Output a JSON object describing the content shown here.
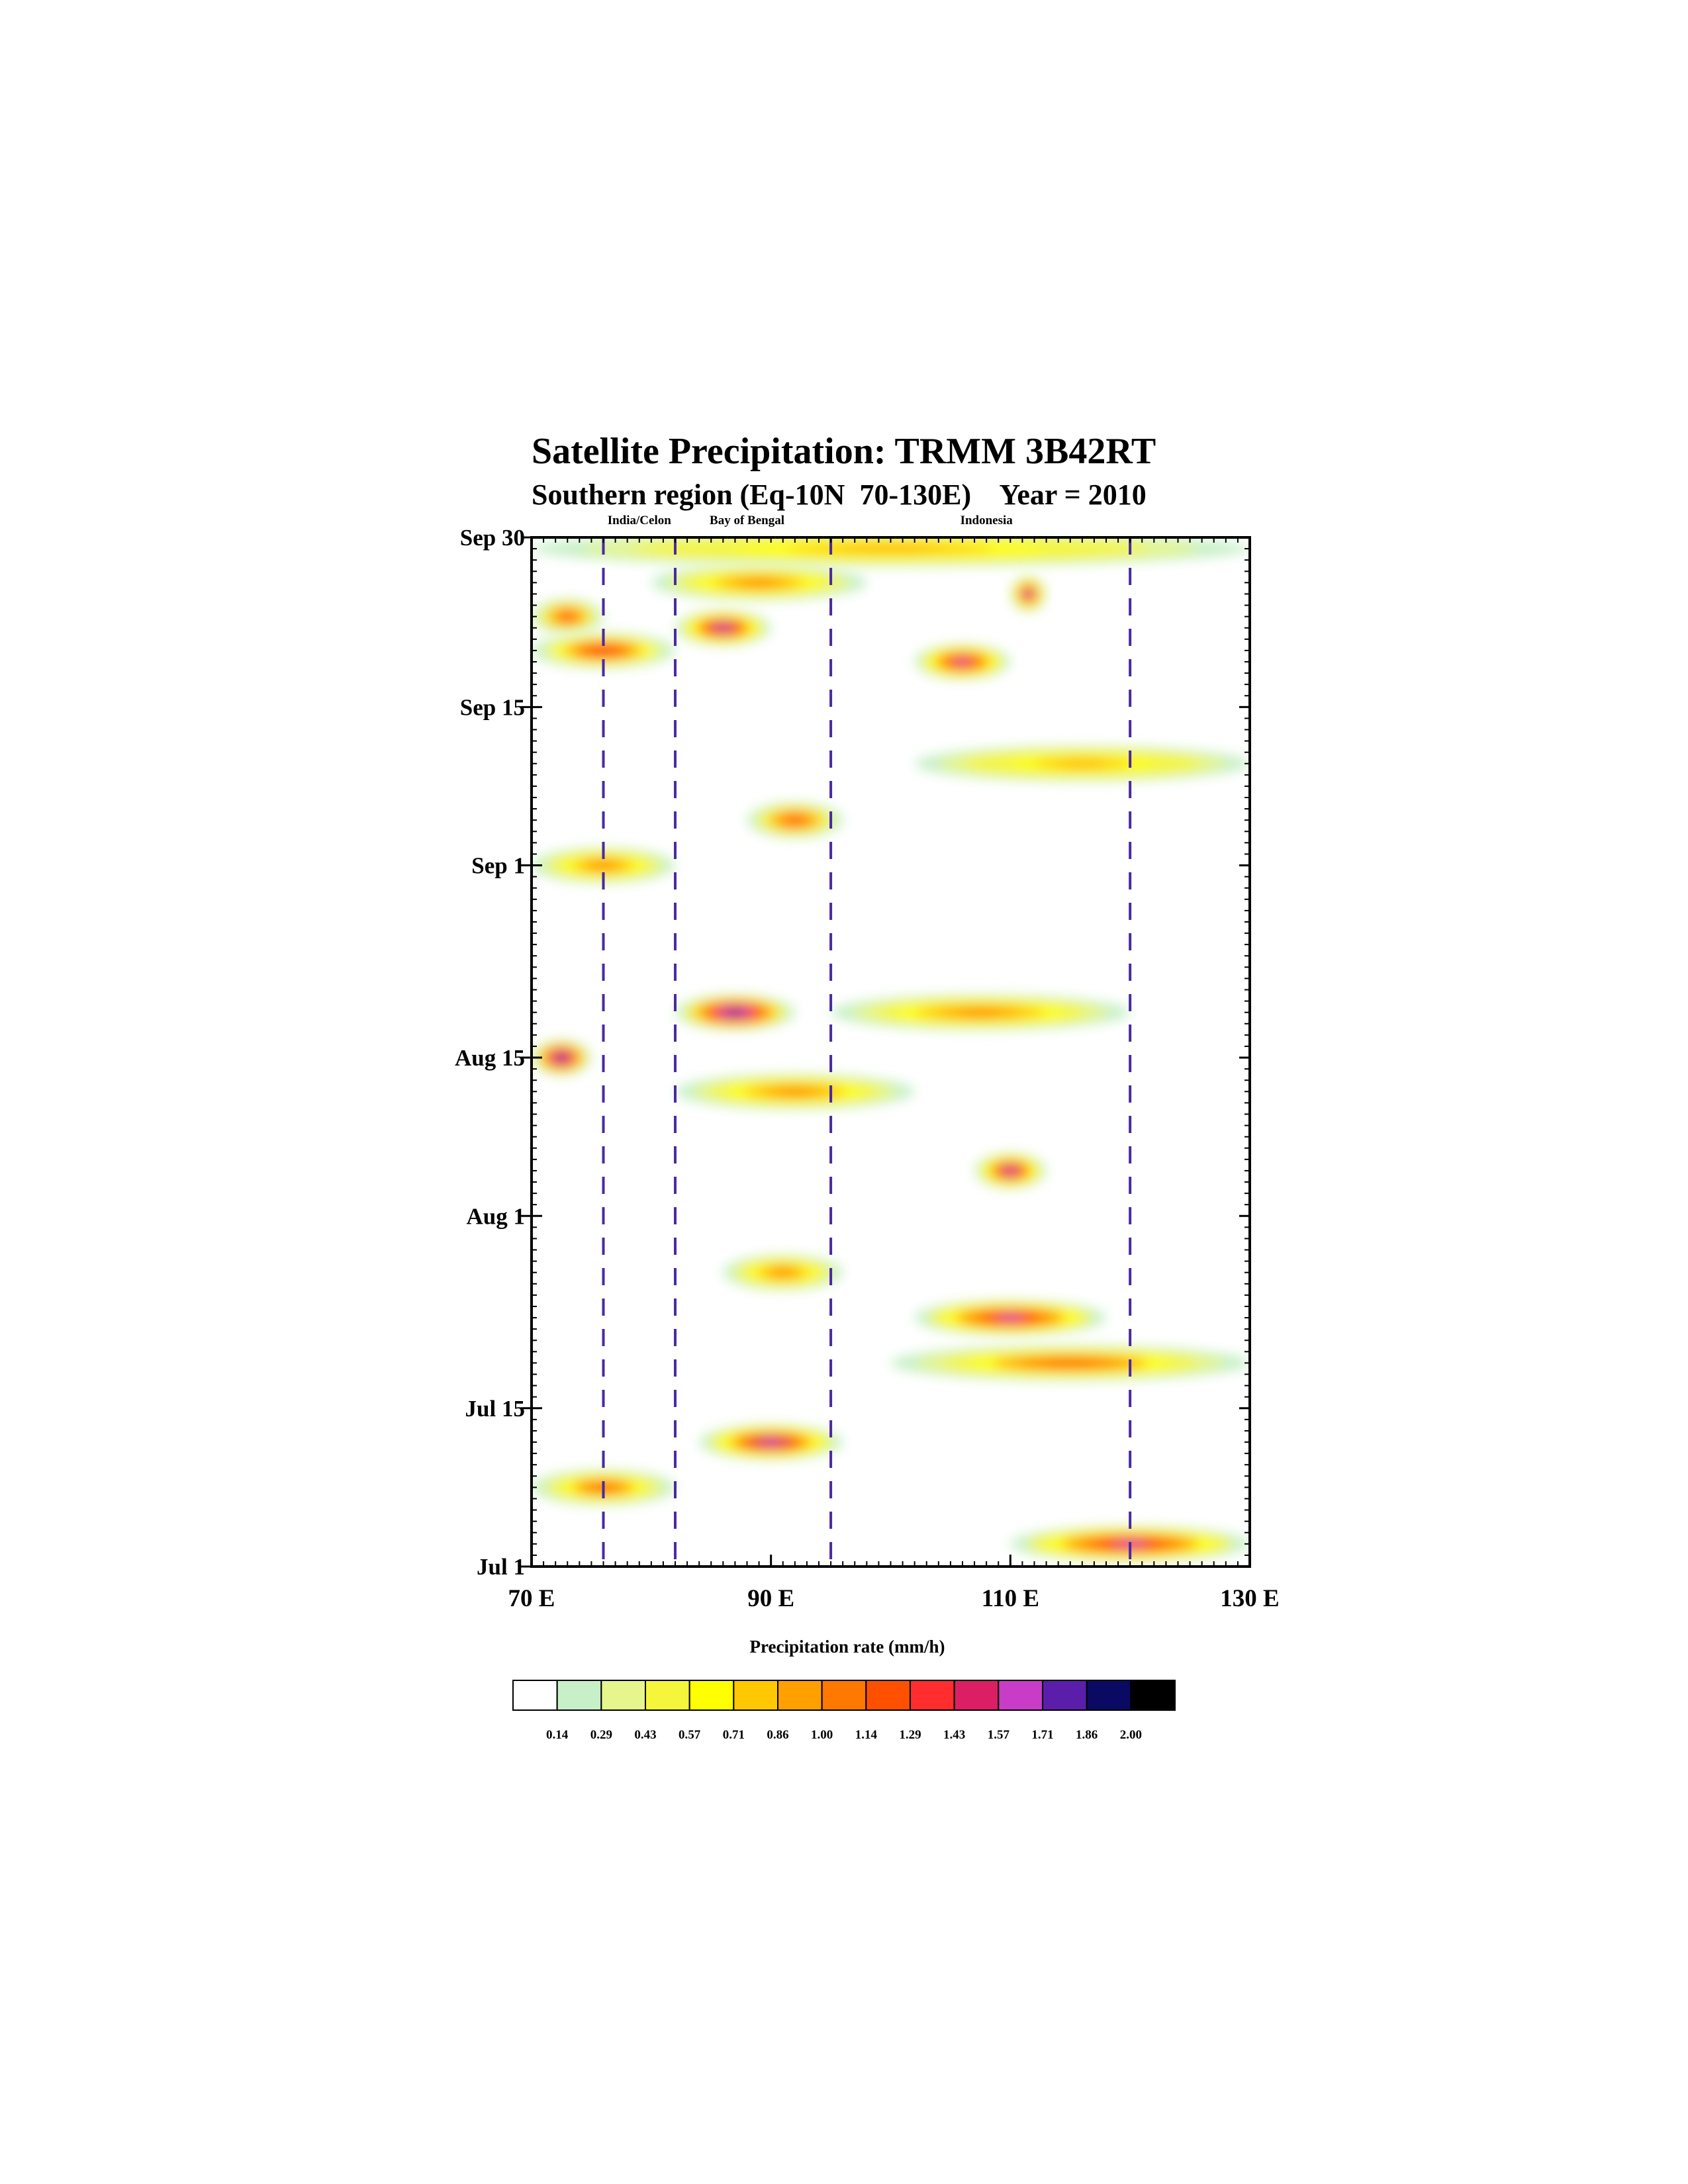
{
  "chart_data": {
    "type": "heatmap",
    "title": "Satellite Precipitation: TRMM 3B42RT",
    "subtitle": "Southern region (Eq-10N  70-130E)    Year = 2010",
    "x_tick_labels": [
      "70 E",
      "90 E",
      "110 E",
      "130 E"
    ],
    "x_tick_values": [
      70,
      90,
      110,
      130
    ],
    "y_tick_labels": [
      "Jul 1",
      "Jul 15",
      "Aug 1",
      "Aug 15",
      "Sep 1",
      "Sep 15",
      "Sep 30"
    ],
    "y_tick_values": [
      "2010-07-01",
      "2010-07-15",
      "2010-08-01",
      "2010-08-15",
      "2010-09-01",
      "2010-09-15",
      "2010-09-30"
    ],
    "xlim": [
      70,
      130
    ],
    "ylim": [
      "2010-07-01",
      "2010-09-30"
    ],
    "region_labels": [
      {
        "text": "India/Celon",
        "lon": 79
      },
      {
        "text": "Bay of Bengal",
        "lon": 88
      },
      {
        "text": "Indonesia",
        "lon": 108
      }
    ],
    "region_boundaries_lon": [
      76,
      82,
      95,
      120
    ],
    "colorbar": {
      "title": "Precipitation rate (mm/h)",
      "levels": [
        "0.14",
        "0.29",
        "0.43",
        "0.57",
        "0.71",
        "0.86",
        "1.00",
        "1.14",
        "1.29",
        "1.43",
        "1.57",
        "1.71",
        "1.86",
        "2.00"
      ],
      "colors": [
        "#ffffff",
        "#c8f0c8",
        "#e6f58c",
        "#f5f53c",
        "#ffff00",
        "#ffc800",
        "#ffa000",
        "#ff7800",
        "#ff5000",
        "#ff2d2d",
        "#dc1e64",
        "#c83cc8",
        "#5a1eaa",
        "#0a0a64",
        "#000000"
      ]
    },
    "features": [
      {
        "date": "2010-09-29",
        "lon_start": 70,
        "lon_end": 130,
        "value": 0.9
      },
      {
        "date": "2010-09-26",
        "lon_start": 80,
        "lon_end": 98,
        "value": 1.1
      },
      {
        "date": "2010-09-25",
        "lon_start": 110,
        "lon_end": 113,
        "value": 1.7
      },
      {
        "date": "2010-09-23",
        "lon_start": 70,
        "lon_end": 76,
        "value": 1.3
      },
      {
        "date": "2010-09-22",
        "lon_start": 82,
        "lon_end": 90,
        "value": 1.7
      },
      {
        "date": "2010-09-20",
        "lon_start": 70,
        "lon_end": 82,
        "value": 1.4
      },
      {
        "date": "2010-09-19",
        "lon_start": 102,
        "lon_end": 110,
        "value": 1.6
      },
      {
        "date": "2010-09-10",
        "lon_start": 102,
        "lon_end": 130,
        "value": 0.9
      },
      {
        "date": "2010-09-05",
        "lon_start": 88,
        "lon_end": 96,
        "value": 1.3
      },
      {
        "date": "2010-09-01",
        "lon_start": 70,
        "lon_end": 82,
        "value": 1.1
      },
      {
        "date": "2010-08-19",
        "lon_start": 82,
        "lon_end": 92,
        "value": 1.9
      },
      {
        "date": "2010-08-19",
        "lon_start": 95,
        "lon_end": 120,
        "value": 1.1
      },
      {
        "date": "2010-08-15",
        "lon_start": 70,
        "lon_end": 75,
        "value": 2.0
      },
      {
        "date": "2010-08-12",
        "lon_start": 82,
        "lon_end": 102,
        "value": 1.0
      },
      {
        "date": "2010-08-05",
        "lon_start": 107,
        "lon_end": 113,
        "value": 1.7
      },
      {
        "date": "2010-07-27",
        "lon_start": 86,
        "lon_end": 96,
        "value": 1.1
      },
      {
        "date": "2010-07-23",
        "lon_start": 102,
        "lon_end": 118,
        "value": 1.6
      },
      {
        "date": "2010-07-19",
        "lon_start": 100,
        "lon_end": 130,
        "value": 1.2
      },
      {
        "date": "2010-07-12",
        "lon_start": 84,
        "lon_end": 96,
        "value": 1.7
      },
      {
        "date": "2010-07-08",
        "lon_start": 70,
        "lon_end": 82,
        "value": 1.2
      },
      {
        "date": "2010-07-03",
        "lon_start": 110,
        "lon_end": 130,
        "value": 1.6
      }
    ],
    "grid": false,
    "legend_placement": "bottom"
  }
}
